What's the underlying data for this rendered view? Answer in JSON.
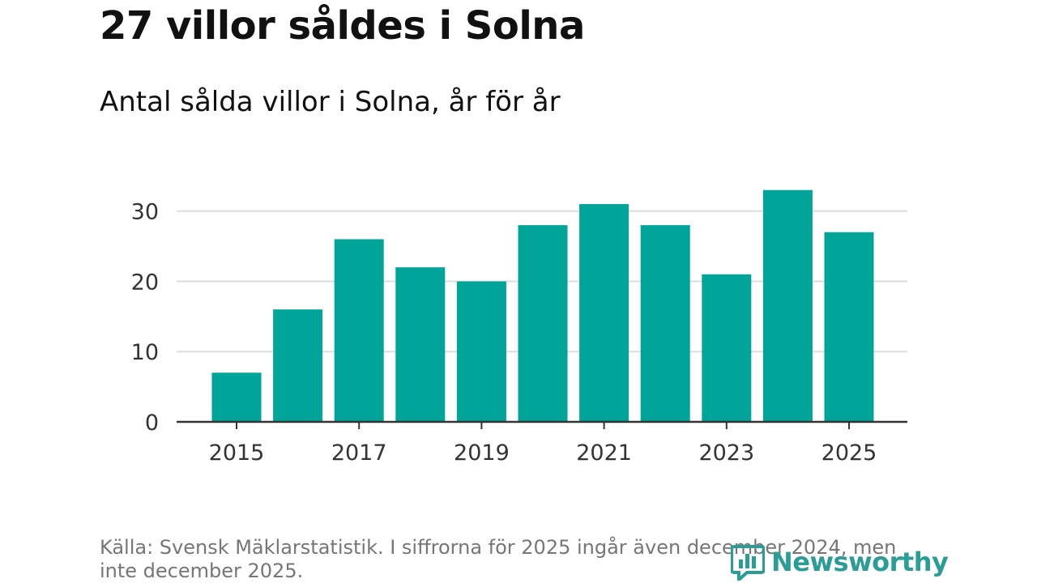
{
  "title": "27 villor såldes i Solna",
  "subtitle": "Antal sålda villor i Solna, år för år",
  "source": "Källa: Svensk Mäklarstatistik. I siffrorna för 2025 ingår även december 2024, men inte december 2025.",
  "brand": {
    "name": "Newsworthy",
    "color": "#2a9d96"
  },
  "chart_data": {
    "type": "bar",
    "categories": [
      "2015",
      "2016",
      "2017",
      "2018",
      "2019",
      "2020",
      "2021",
      "2022",
      "2023",
      "2024",
      "2025"
    ],
    "values": [
      7,
      16,
      26,
      22,
      20,
      28,
      31,
      28,
      21,
      33,
      27
    ],
    "x_tick_labels": [
      "2015",
      "2017",
      "2019",
      "2021",
      "2023",
      "2025"
    ],
    "y_ticks": [
      0,
      10,
      20,
      30
    ],
    "ylim": [
      0,
      37
    ],
    "xlabel": "",
    "ylabel": "",
    "grid": true,
    "legend": "none",
    "bar_color": "#00a499",
    "grid_color": "#dddddd",
    "axis_color": "#333333"
  }
}
